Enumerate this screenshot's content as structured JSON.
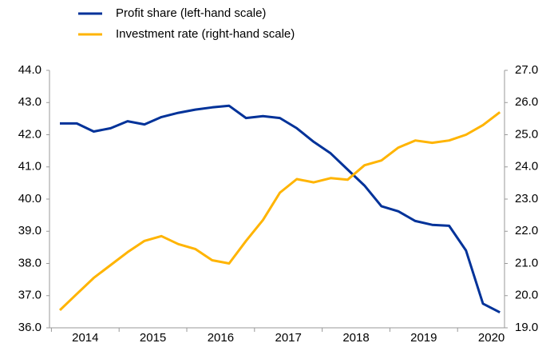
{
  "chart_data": {
    "type": "line",
    "categories": [
      null,
      "2014",
      null,
      null,
      null,
      "2015",
      null,
      null,
      null,
      "2016",
      null,
      null,
      null,
      "2017",
      null,
      null,
      null,
      "2018",
      null,
      null,
      null,
      "2019",
      null,
      null,
      null,
      "2020",
      null
    ],
    "series": [
      {
        "name": "Profit share (left-hand scale)",
        "color": "#003299",
        "axis": "y",
        "values": [
          42.35,
          42.35,
          42.1,
          42.2,
          42.42,
          42.32,
          42.55,
          42.68,
          42.78,
          42.85,
          42.9,
          42.52,
          42.58,
          42.52,
          42.2,
          41.78,
          41.42,
          40.92,
          40.42,
          39.78,
          39.62,
          39.32,
          39.2,
          39.17,
          38.4,
          36.75,
          36.48
        ]
      },
      {
        "name": "Investment rate (right-hand scale)",
        "color": "#FFB400",
        "axis": "y2",
        "values": [
          19.55,
          20.05,
          20.55,
          20.95,
          21.35,
          21.7,
          21.85,
          21.6,
          21.45,
          21.1,
          21.0,
          21.7,
          22.35,
          23.2,
          23.62,
          23.52,
          23.65,
          23.6,
          24.05,
          24.2,
          24.6,
          24.82,
          24.75,
          24.82,
          25.0,
          25.3,
          25.7
        ]
      }
    ],
    "ylim": [
      36,
      44
    ],
    "yticks": [
      {
        "value": 36,
        "label": "36.0"
      },
      {
        "value": 37,
        "label": "37.0"
      },
      {
        "value": 38,
        "label": "38.0"
      },
      {
        "value": 39,
        "label": "39.0"
      },
      {
        "value": 40,
        "label": "40.0"
      },
      {
        "value": 41,
        "label": "41.0"
      },
      {
        "value": 42,
        "label": "42.0"
      },
      {
        "value": 43,
        "label": "43.0"
      },
      {
        "value": 44,
        "label": "44.0"
      }
    ],
    "y2lim": [
      19,
      27
    ],
    "y2ticks": [
      {
        "value": 19,
        "label": "19.0"
      },
      {
        "value": 20,
        "label": "20.0"
      },
      {
        "value": 21,
        "label": "21.0"
      },
      {
        "value": 22,
        "label": "22.0"
      },
      {
        "value": 23,
        "label": "23.0"
      },
      {
        "value": 24,
        "label": "24.0"
      },
      {
        "value": 25,
        "label": "25.0"
      },
      {
        "value": 26,
        "label": "26.0"
      },
      {
        "value": 27,
        "label": "27.0"
      }
    ],
    "grid": false
  }
}
